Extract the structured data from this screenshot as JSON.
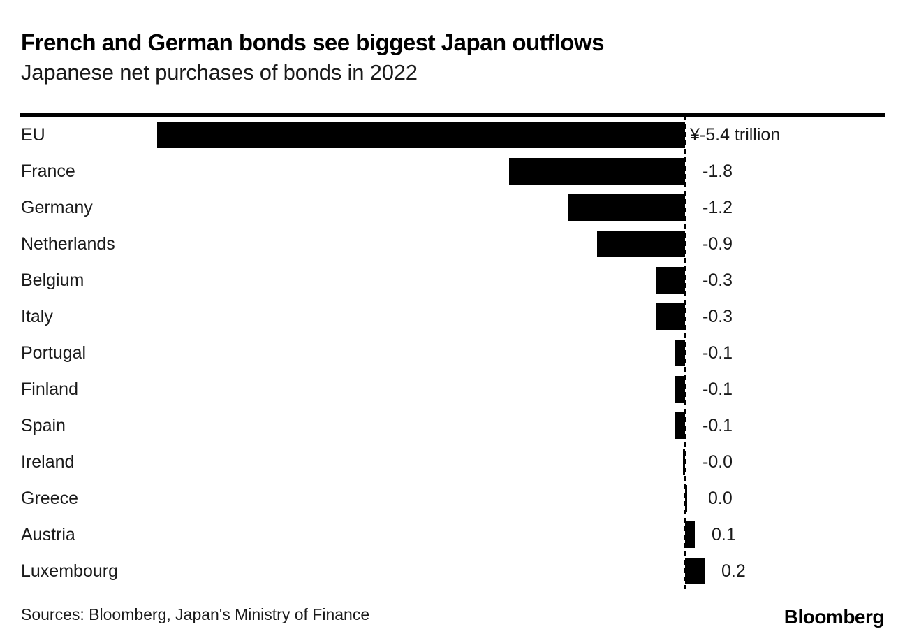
{
  "header": {
    "title": "French and German bonds see biggest Japan outflows",
    "subtitle": "Japanese net purchases of bonds in 2022"
  },
  "footer": {
    "sources": "Sources: Bloomberg, Japan's Ministry of Finance",
    "logo": "Bloomberg"
  },
  "colors": {
    "background": "#ffffff",
    "bar": "#000000",
    "text": "#1a1a1a",
    "rule": "#000000",
    "zero_line": "#000000"
  },
  "chart_data": {
    "type": "bar",
    "orientation": "horizontal",
    "title": "French and German bonds see biggest Japan outflows",
    "subtitle": "Japanese net purchases of bonds in 2022",
    "unit": "yen trillion",
    "categories": [
      "EU",
      "France",
      "Germany",
      "Netherlands",
      "Belgium",
      "Italy",
      "Portugal",
      "Finland",
      "Spain",
      "Ireland",
      "Greece",
      "Austria",
      "Luxembourg"
    ],
    "values": [
      -5.4,
      -1.8,
      -1.2,
      -0.9,
      -0.3,
      -0.3,
      -0.1,
      -0.1,
      -0.1,
      -0.0,
      0.0,
      0.1,
      0.2
    ],
    "value_labels": [
      "¥-5.4 trillion",
      "-1.8",
      "-1.2",
      "-0.9",
      "-0.3",
      "-0.3",
      "-0.1",
      "-0.1",
      "-0.1",
      "-0.0",
      "0.0",
      "0.1",
      "0.2"
    ],
    "xlabel": "",
    "ylabel": "",
    "xlim": [
      -6.8,
      2.0
    ],
    "zero_line_style": "dashed",
    "grid": false,
    "legend": "none",
    "value_label_position": "right-of-zero-line",
    "bar_color": "#000000"
  }
}
